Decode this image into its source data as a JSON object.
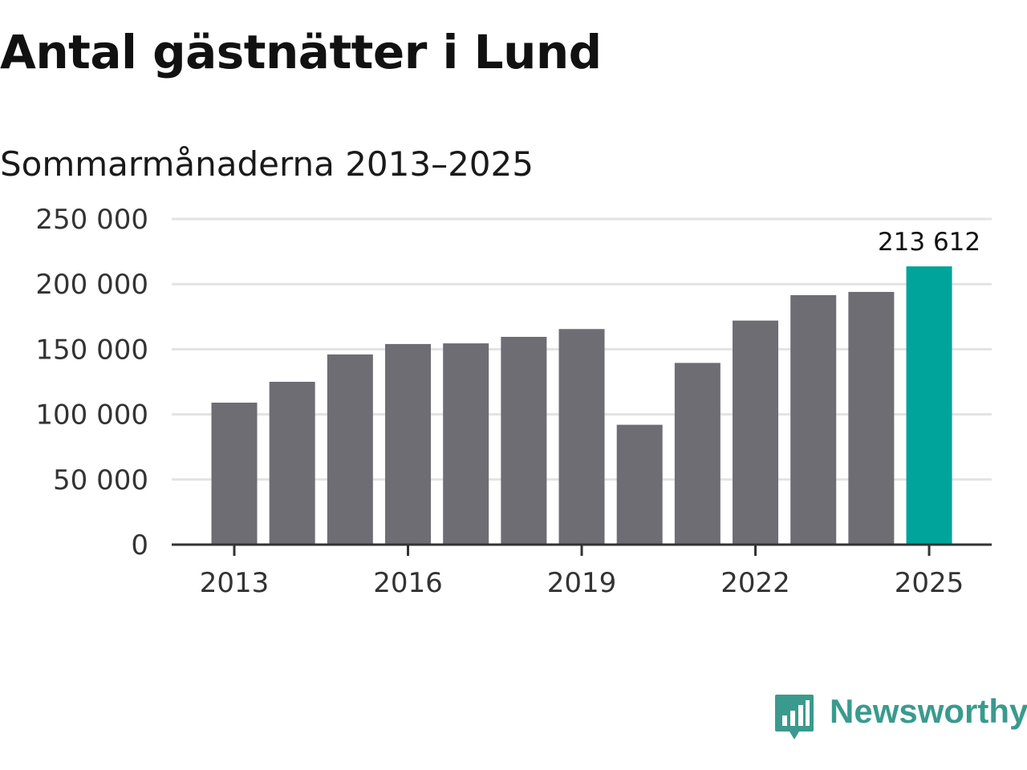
{
  "title": "Antal gästnätter i Lund",
  "subtitle": "Sommarmånaderna 2013–2025",
  "brand": {
    "name": "Newsworthy",
    "logo_icon": "bar-chart-speech-bubble-icon",
    "color": "#3a9a8e"
  },
  "colors": {
    "bar": "#6e6d73",
    "highlight": "#00a49b",
    "grid": "#e3e3e3",
    "axis": "#333333"
  },
  "chart_data": {
    "type": "bar",
    "title": "Antal gästnätter i Lund",
    "subtitle": "Sommarmånaderna 2013–2025",
    "categories": [
      "2013",
      "2014",
      "2015",
      "2016",
      "2017",
      "2018",
      "2019",
      "2020",
      "2021",
      "2022",
      "2023",
      "2024",
      "2025"
    ],
    "values": [
      109000,
      125000,
      146000,
      154000,
      154500,
      159500,
      165500,
      92000,
      139500,
      172000,
      191500,
      194000,
      213612
    ],
    "highlight_index": 12,
    "ylim": [
      0,
      250000
    ],
    "yticks": [
      0,
      50000,
      100000,
      150000,
      200000,
      250000
    ],
    "ytick_labels": [
      "0",
      "50 000",
      "100 000",
      "150 000",
      "200 000",
      "250 000"
    ],
    "xtick_labels": [
      "2013",
      "2016",
      "2019",
      "2022",
      "2025"
    ],
    "xtick_categories": [
      "2013",
      "2016",
      "2019",
      "2022",
      "2025"
    ],
    "data_labels": [
      {
        "category": "2025",
        "text": "213 612"
      }
    ],
    "grid": true,
    "legend": "none",
    "xlabel": "",
    "ylabel": ""
  }
}
